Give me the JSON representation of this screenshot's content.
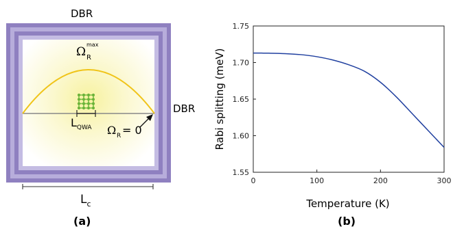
{
  "panel_a": {
    "dbr_top": "DBR",
    "dbr_right": "DBR",
    "omega": "Ω",
    "omega_sub": "R",
    "omega_sup": "max",
    "qw_sub": "QWA",
    "omega_zero": "= 0",
    "lc_sub": "c",
    "caption": "(a)",
    "colors": {
      "dbr_outer": "#8c7bbd",
      "dbr_inner": "#b9b0dc",
      "field": "#f0c419",
      "qw": "#7bc043",
      "glow": "#fffbd0"
    }
  },
  "panel_b": {
    "caption": "(b)"
  },
  "chart_data": {
    "type": "line",
    "title": "",
    "xlabel": "Temperature (K)",
    "ylabel": "Rabi splitting (meV)",
    "xlim": [
      0,
      300
    ],
    "ylim": [
      1.55,
      1.75
    ],
    "xticks": [
      0,
      100,
      200,
      300
    ],
    "yticks": [
      1.55,
      1.6,
      1.65,
      1.7,
      1.75
    ],
    "xtick_labels": [
      "0",
      "100",
      "200",
      "300"
    ],
    "ytick_labels": [
      "1.55",
      "1.60",
      "1.65",
      "1.70",
      "1.75"
    ],
    "grid": false,
    "series": [
      {
        "color": "#1f3f9f",
        "x": [
          0,
          25,
          50,
          75,
          100,
          125,
          150,
          175,
          200,
          225,
          250,
          275,
          300
        ],
        "y": [
          1.713,
          1.7128,
          1.7122,
          1.7108,
          1.708,
          1.7035,
          1.697,
          1.688,
          1.673,
          1.653,
          1.63,
          1.607,
          1.584
        ]
      }
    ]
  }
}
